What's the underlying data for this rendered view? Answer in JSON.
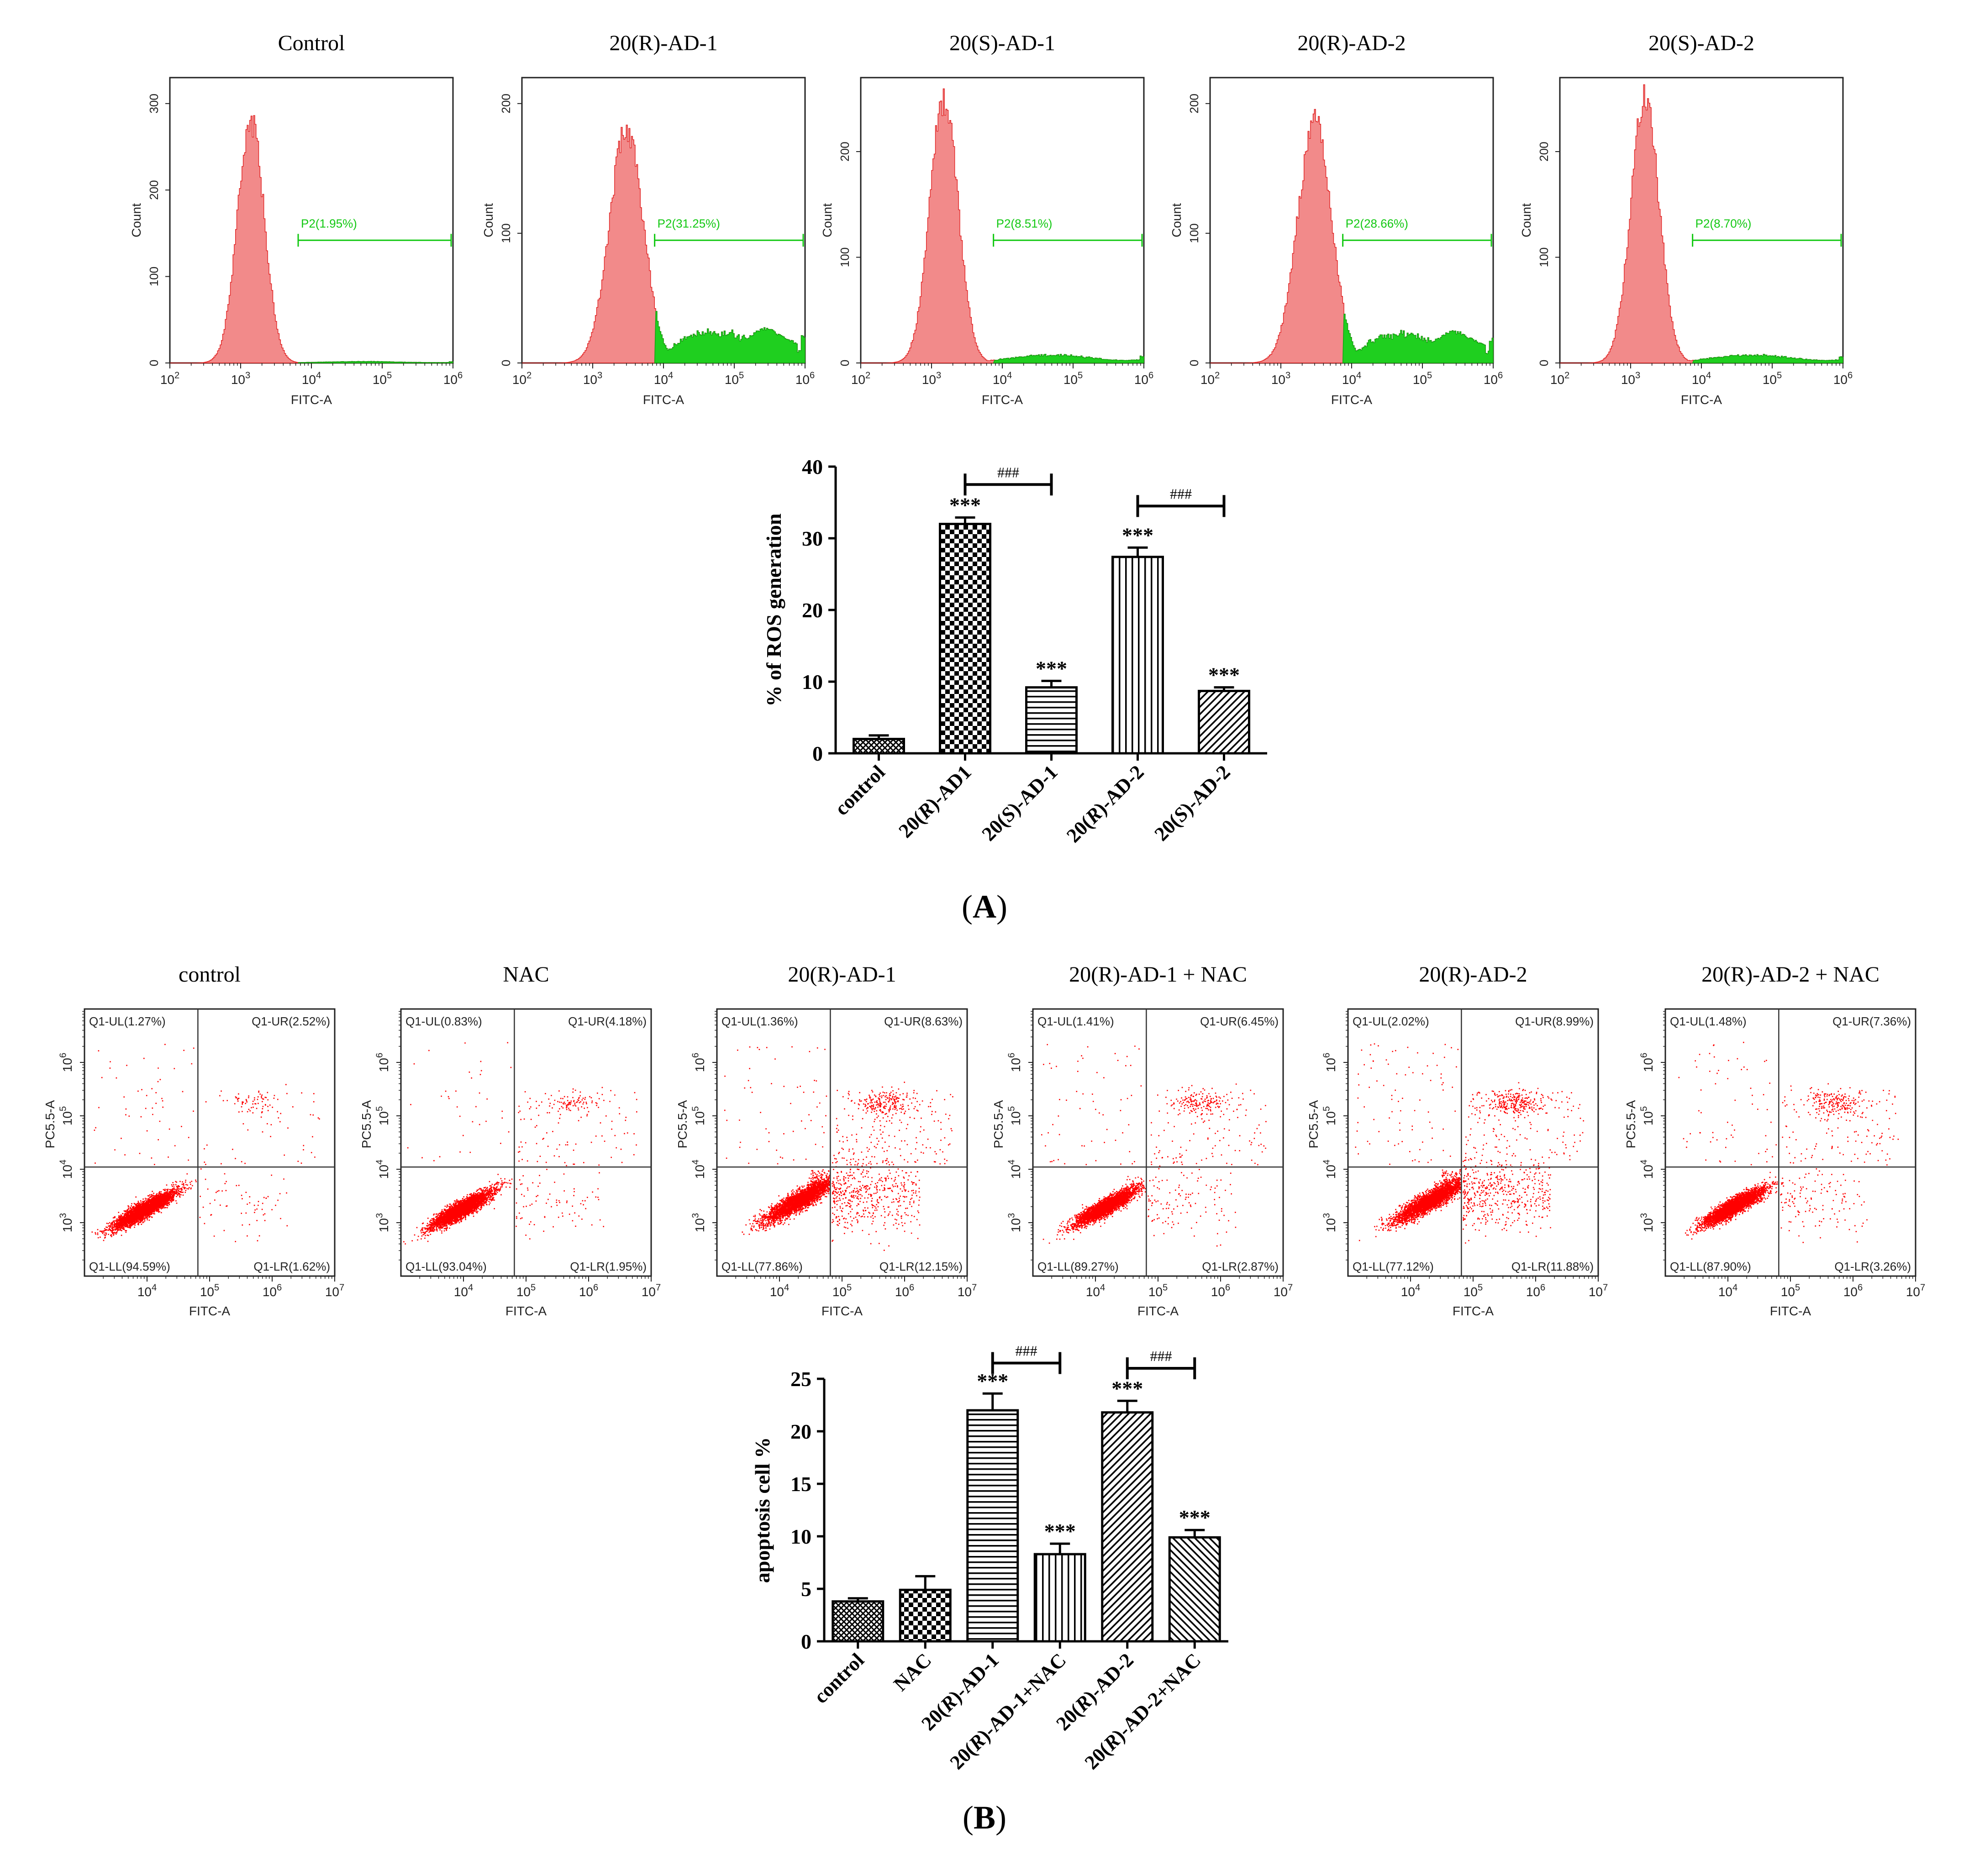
{
  "figure": {
    "panel_A_label": "A",
    "panel_B_label": "B"
  },
  "chart_data": [
    {
      "type": "histogram",
      "title": "Control",
      "xlabel": "FITC-A",
      "ylabel": "Count",
      "x_scale": "log",
      "xlim": [
        100,
        1000000
      ],
      "x_ticks": [
        "10^2",
        "10^3",
        "10^4",
        "10^5",
        "10^6"
      ],
      "ylim": [
        0,
        330
      ],
      "y_ticks": [
        0,
        100,
        200,
        300
      ],
      "gate": {
        "name": "P2",
        "label": "P2(1.95%)",
        "from": 6500,
        "to": 1000000,
        "percent": 1.95
      },
      "peak_x": 1400,
      "peak_count": 280,
      "spread": 0.19,
      "tail_level": 0.004,
      "colors": {
        "main": "#f28a8a",
        "gated": "#1fcf1f",
        "gate_line": "#12c812"
      }
    },
    {
      "type": "histogram",
      "title": "20(R)-AD-1",
      "xlabel": "FITC-A",
      "ylabel": "Count",
      "x_scale": "log",
      "xlim": [
        100,
        1000000
      ],
      "x_ticks": [
        "10^2",
        "10^3",
        "10^4",
        "10^5",
        "10^6"
      ],
      "ylim": [
        0,
        220
      ],
      "y_ticks": [
        0,
        100,
        200
      ],
      "gate": {
        "name": "P2",
        "label": "P2(31.25%)",
        "from": 7500,
        "to": 1000000,
        "percent": 31.25
      },
      "peak_x": 3000,
      "peak_count": 180,
      "spread": 0.24,
      "tail_level": 0.09,
      "colors": {
        "main": "#f28a8a",
        "gated": "#1fcf1f",
        "gate_line": "#12c812"
      }
    },
    {
      "type": "histogram",
      "title": "20(S)-AD-1",
      "xlabel": "FITC-A",
      "ylabel": "Count",
      "x_scale": "log",
      "xlim": [
        100,
        1000000
      ],
      "x_ticks": [
        "10^2",
        "10^3",
        "10^4",
        "10^5",
        "10^6"
      ],
      "ylim": [
        0,
        270
      ],
      "y_ticks": [
        0,
        100,
        200
      ],
      "gate": {
        "name": "P2",
        "label": "P2(8.51%)",
        "from": 7500,
        "to": 1000000,
        "percent": 8.51
      },
      "peak_x": 1500,
      "peak_count": 250,
      "spread": 0.2,
      "tail_level": 0.02,
      "colors": {
        "main": "#f28a8a",
        "gated": "#1fcf1f",
        "gate_line": "#12c812"
      }
    },
    {
      "type": "histogram",
      "title": "20(R)-AD-2",
      "xlabel": "FITC-A",
      "ylabel": "Count",
      "x_scale": "log",
      "xlim": [
        100,
        1000000
      ],
      "x_ticks": [
        "10^2",
        "10^3",
        "10^4",
        "10^5",
        "10^6"
      ],
      "ylim": [
        0,
        220
      ],
      "y_ticks": [
        0,
        100,
        200
      ],
      "gate": {
        "name": "P2",
        "label": "P2(28.66%)",
        "from": 7500,
        "to": 1000000,
        "percent": 28.66
      },
      "peak_x": 3000,
      "peak_count": 185,
      "spread": 0.24,
      "tail_level": 0.08,
      "colors": {
        "main": "#f28a8a",
        "gated": "#1fcf1f",
        "gate_line": "#12c812"
      }
    },
    {
      "type": "histogram",
      "title": "20(S)-AD-2",
      "xlabel": "FITC-A",
      "ylabel": "Count",
      "x_scale": "log",
      "xlim": [
        100,
        1000000
      ],
      "x_ticks": [
        "10^2",
        "10^3",
        "10^4",
        "10^5",
        "10^6"
      ],
      "ylim": [
        0,
        270
      ],
      "y_ticks": [
        0,
        100,
        200
      ],
      "gate": {
        "name": "P2",
        "label": "P2(8.70%)",
        "from": 7500,
        "to": 1000000,
        "percent": 8.7
      },
      "peak_x": 1600,
      "peak_count": 250,
      "spread": 0.2,
      "tail_level": 0.02,
      "colors": {
        "main": "#f28a8a",
        "gated": "#1fcf1f",
        "gate_line": "#12c812"
      }
    },
    {
      "type": "bar",
      "title": "",
      "categories": [
        "control",
        "20(R)-AD1",
        "20(S)-AD-1",
        "20(R)-AD-2",
        "20(S)-AD-2"
      ],
      "values": [
        2.0,
        32.0,
        9.2,
        27.4,
        8.7
      ],
      "errors": [
        0.5,
        0.9,
        0.9,
        1.3,
        0.5
      ],
      "patterns": [
        "crosshatch",
        "checker",
        "hlines",
        "vlines",
        "diag"
      ],
      "significance": [
        "",
        "***",
        "***",
        "***",
        "***"
      ],
      "brackets": [
        {
          "from": 1,
          "to": 2,
          "label": "###",
          "y": 37.5
        },
        {
          "from": 3,
          "to": 4,
          "label": "###",
          "y": 34.5
        }
      ],
      "ylabel": "% of ROS generation",
      "xlabel": "",
      "ylim": [
        0,
        40
      ],
      "y_ticks": [
        0,
        10,
        20,
        30,
        40
      ]
    },
    {
      "type": "scatter",
      "title": "control",
      "xlabel": "FITC-A",
      "ylabel": "PC5.5-A",
      "x_scale": "log",
      "y_scale": "log",
      "xlim": [
        1000,
        10000000
      ],
      "ylim": [
        100,
        10000000
      ],
      "x_ticks": [
        "10^4",
        "10^5",
        "10^6",
        "10^7"
      ],
      "y_ticks": [
        "10^3",
        "10^4",
        "10^5",
        "10^6"
      ],
      "quadrants": {
        "UL": "Q1-UL(1.27%)",
        "UR": "Q1-UR(2.52%)",
        "LL": "Q1-LL(94.59%)",
        "LR": "Q1-LR(1.62%)"
      },
      "gate": {
        "x": 65000,
        "y": 11000
      },
      "cluster": {
        "x": 9000,
        "y": 1800
      },
      "fractions": {
        "UL": 1.27,
        "UR": 2.52,
        "LL": 94.59,
        "LR": 1.62
      },
      "point_color": "#ff0000"
    },
    {
      "type": "scatter",
      "title": "NAC",
      "xlabel": "FITC-A",
      "ylabel": "PC5.5-A",
      "x_scale": "log",
      "y_scale": "log",
      "xlim": [
        1000,
        10000000
      ],
      "ylim": [
        100,
        10000000
      ],
      "x_ticks": [
        "10^4",
        "10^5",
        "10^6",
        "10^7"
      ],
      "y_ticks": [
        "10^3",
        "10^4",
        "10^5",
        "10^6"
      ],
      "quadrants": {
        "UL": "Q1-UL(0.83%)",
        "UR": "Q1-UR(4.18%)",
        "LL": "Q1-LL(93.04%)",
        "LR": "Q1-LR(1.95%)"
      },
      "gate": {
        "x": 65000,
        "y": 11000
      },
      "cluster": {
        "x": 9000,
        "y": 1800
      },
      "fractions": {
        "UL": 0.83,
        "UR": 4.18,
        "LL": 93.04,
        "LR": 1.95
      },
      "point_color": "#ff0000"
    },
    {
      "type": "scatter",
      "title": "20(R)-AD-1",
      "xlabel": "FITC-A",
      "ylabel": "PC5.5-A",
      "x_scale": "log",
      "y_scale": "log",
      "xlim": [
        1000,
        10000000
      ],
      "ylim": [
        100,
        10000000
      ],
      "x_ticks": [
        "10^4",
        "10^5",
        "10^6",
        "10^7"
      ],
      "y_ticks": [
        "10^3",
        "10^4",
        "10^5",
        "10^6"
      ],
      "quadrants": {
        "UL": "Q1-UL(1.36%)",
        "UR": "Q1-UR(8.63%)",
        "LL": "Q1-LL(77.86%)",
        "LR": "Q1-LR(12.15%)"
      },
      "gate": {
        "x": 65000,
        "y": 11000
      },
      "cluster": {
        "x": 20000,
        "y": 2600
      },
      "fractions": {
        "UL": 1.36,
        "UR": 8.63,
        "LL": 77.86,
        "LR": 12.15
      },
      "point_color": "#ff0000"
    },
    {
      "type": "scatter",
      "title": "20(R)-AD-1 + NAC",
      "xlabel": "FITC-A",
      "ylabel": "PC5.5-A",
      "x_scale": "log",
      "y_scale": "log",
      "xlim": [
        1000,
        10000000
      ],
      "ylim": [
        100,
        10000000
      ],
      "x_ticks": [
        "10^4",
        "10^5",
        "10^6",
        "10^7"
      ],
      "y_ticks": [
        "10^3",
        "10^4",
        "10^5",
        "10^6"
      ],
      "quadrants": {
        "UL": "Q1-UL(1.41%)",
        "UR": "Q1-UR(6.45%)",
        "LL": "Q1-LL(89.27%)",
        "LR": "Q1-LR(2.87%)"
      },
      "gate": {
        "x": 65000,
        "y": 11000
      },
      "cluster": {
        "x": 14000,
        "y": 2000
      },
      "fractions": {
        "UL": 1.41,
        "UR": 6.45,
        "LL": 89.27,
        "LR": 2.87
      },
      "point_color": "#ff0000"
    },
    {
      "type": "scatter",
      "title": "20(R)-AD-2",
      "xlabel": "FITC-A",
      "ylabel": "PC5.5-A",
      "x_scale": "log",
      "y_scale": "log",
      "xlim": [
        1000,
        10000000
      ],
      "ylim": [
        100,
        10000000
      ],
      "x_ticks": [
        "10^4",
        "10^5",
        "10^6",
        "10^7"
      ],
      "y_ticks": [
        "10^3",
        "10^4",
        "10^5",
        "10^6"
      ],
      "quadrants": {
        "UL": "Q1-UL(2.02%)",
        "UR": "Q1-UR(8.99%)",
        "LL": "Q1-LL(77.12%)",
        "LR": "Q1-LR(11.88%)"
      },
      "gate": {
        "x": 65000,
        "y": 11000
      },
      "cluster": {
        "x": 20000,
        "y": 2600
      },
      "fractions": {
        "UL": 2.02,
        "UR": 8.99,
        "LL": 77.12,
        "LR": 11.88
      },
      "point_color": "#ff0000"
    },
    {
      "type": "scatter",
      "title": "20(R)-AD-2 + NAC",
      "xlabel": "FITC-A",
      "ylabel": "PC5.5-A",
      "x_scale": "log",
      "y_scale": "log",
      "xlim": [
        1000,
        10000000
      ],
      "ylim": [
        100,
        10000000
      ],
      "x_ticks": [
        "10^4",
        "10^5",
        "10^6",
        "10^7"
      ],
      "y_ticks": [
        "10^3",
        "10^4",
        "10^5",
        "10^6"
      ],
      "quadrants": {
        "UL": "Q1-UL(1.48%)",
        "UR": "Q1-UR(7.36%)",
        "LL": "Q1-LL(87.90%)",
        "LR": "Q1-LR(3.26%)"
      },
      "gate": {
        "x": 65000,
        "y": 11000
      },
      "cluster": {
        "x": 12000,
        "y": 2000
      },
      "fractions": {
        "UL": 1.48,
        "UR": 7.36,
        "LL": 87.9,
        "LR": 3.26
      },
      "point_color": "#ff0000"
    },
    {
      "type": "bar",
      "title": "",
      "categories": [
        "control",
        "NAC",
        "20(R)-AD-1",
        "20(R)-AD-1+NAC",
        "20(R)-AD-2",
        "20(R)-AD-2+NAC"
      ],
      "values": [
        3.8,
        4.9,
        22.0,
        8.3,
        21.8,
        9.9
      ],
      "errors": [
        0.3,
        1.3,
        1.6,
        1.0,
        1.1,
        0.7
      ],
      "patterns": [
        "crosshatch",
        "checker",
        "hlines",
        "vlines",
        "diag",
        "diag2"
      ],
      "significance": [
        "",
        "",
        "***",
        "***",
        "***",
        "***"
      ],
      "brackets": [
        {
          "from": 2,
          "to": 3,
          "label": "###",
          "y": 26.5
        },
        {
          "from": 4,
          "to": 5,
          "label": "###",
          "y": 26.0
        }
      ],
      "ylabel": "apoptosis cell %",
      "xlabel": "",
      "ylim": [
        0,
        25
      ],
      "y_ticks": [
        0,
        5,
        10,
        15,
        20,
        25
      ]
    }
  ]
}
